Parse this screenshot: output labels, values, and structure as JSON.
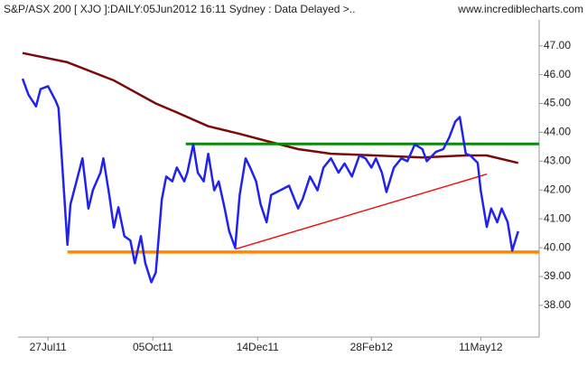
{
  "chart_data": {
    "type": "line",
    "title": "S&P/ASX 200 [ XJO ]:DAILY:05Jun2012 16:11 Sydney : Data Delayed >..",
    "source": "www.incrediblecharts.com",
    "xlim": [
      "2011-07-07",
      "2012-06-19"
    ],
    "xticks": [
      {
        "value": "2011-07-27",
        "label": "27Jul11"
      },
      {
        "value": "2011-10-05",
        "label": "05Oct11"
      },
      {
        "value": "2011-12-14",
        "label": "14Dec11"
      },
      {
        "value": "2012-02-28",
        "label": "28Feb12"
      },
      {
        "value": "2012-05-11",
        "label": "11May12"
      }
    ],
    "ylim": [
      36.9,
      47.9
    ],
    "yticks": [
      {
        "value": 38,
        "label": "38.00"
      },
      {
        "value": 39,
        "label": "39.00"
      },
      {
        "value": 40,
        "label": "40.00"
      },
      {
        "value": 41,
        "label": "41.00"
      },
      {
        "value": 42,
        "label": "42.00"
      },
      {
        "value": 43,
        "label": "43.00"
      },
      {
        "value": 44,
        "label": "44.00"
      },
      {
        "value": 45,
        "label": "45.00"
      },
      {
        "value": 46,
        "label": "46.00"
      },
      {
        "value": 47,
        "label": "47.00"
      }
    ],
    "series": [
      {
        "color": "#2222ee",
        "width": 2.5,
        "x": [
          "2011-07-10",
          "2011-07-14",
          "2011-07-19",
          "2011-07-22",
          "2011-07-27",
          "2011-08-01",
          "2011-08-03",
          "2011-08-05",
          "2011-08-09",
          "2011-08-11",
          "2011-08-15",
          "2011-08-19",
          "2011-08-23",
          "2011-08-26",
          "2011-08-31",
          "2011-09-02",
          "2011-09-06",
          "2011-09-09",
          "2011-09-12",
          "2011-09-16",
          "2011-09-20",
          "2011-09-23",
          "2011-09-27",
          "2011-09-30",
          "2011-10-04",
          "2011-10-07",
          "2011-10-11",
          "2011-10-14",
          "2011-10-18",
          "2011-10-21",
          "2011-10-26",
          "2011-10-28",
          "2011-11-01",
          "2011-11-04",
          "2011-11-08",
          "2011-11-11",
          "2011-11-15",
          "2011-11-18",
          "2011-11-22",
          "2011-11-25",
          "2011-11-29",
          "2011-12-02",
          "2011-12-06",
          "2011-12-09",
          "2011-12-13",
          "2011-12-16",
          "2011-12-20",
          "2011-12-23",
          "2011-12-29",
          "2012-01-04",
          "2012-01-10",
          "2012-01-13",
          "2012-01-18",
          "2012-01-23",
          "2012-01-27",
          "2012-02-01",
          "2012-02-06",
          "2012-02-10",
          "2012-02-15",
          "2012-02-20",
          "2012-02-24",
          "2012-02-28",
          "2012-03-02",
          "2012-03-06",
          "2012-03-09",
          "2012-03-14",
          "2012-03-19",
          "2012-03-23",
          "2012-03-28",
          "2012-04-02",
          "2012-04-05",
          "2012-04-11",
          "2012-04-16",
          "2012-04-20",
          "2012-04-24",
          "2012-04-27",
          "2012-05-01",
          "2012-05-04",
          "2012-05-09",
          "2012-05-11",
          "2012-05-15",
          "2012-05-18",
          "2012-05-22",
          "2012-05-25",
          "2012-05-29",
          "2012-06-01",
          "2012-06-05"
        ],
        "values": [
          45.86,
          45.3,
          44.9,
          45.5,
          45.6,
          45.1,
          44.85,
          43.26,
          40.1,
          41.5,
          42.3,
          43.1,
          41.36,
          42.0,
          42.6,
          43.1,
          41.8,
          40.7,
          41.4,
          40.4,
          40.25,
          39.46,
          40.4,
          39.46,
          38.8,
          39.14,
          41.68,
          42.47,
          42.3,
          42.78,
          42.3,
          42.6,
          43.58,
          42.6,
          42.3,
          43.26,
          41.99,
          42.3,
          41.36,
          40.57,
          40.0,
          41.83,
          43.1,
          42.78,
          42.3,
          41.5,
          40.88,
          41.83,
          41.99,
          42.15,
          41.36,
          41.68,
          42.47,
          41.99,
          42.78,
          43.1,
          42.6,
          42.92,
          42.47,
          43.2,
          43.1,
          42.78,
          43.1,
          42.6,
          41.93,
          42.78,
          43.1,
          43.0,
          43.58,
          43.42,
          43.0,
          43.32,
          43.42,
          43.83,
          44.37,
          44.53,
          43.26,
          43.2,
          42.94,
          41.99,
          40.72,
          41.36,
          40.88,
          41.36,
          40.88,
          39.9,
          40.57
        ]
      },
      {
        "color": "#7a0a0a",
        "width": 2.5,
        "x": [
          "2011-07-10",
          "2011-08-09",
          "2011-09-09",
          "2011-10-07",
          "2011-10-21",
          "2011-11-11",
          "2011-12-01",
          "2011-12-20",
          "2012-01-10",
          "2012-02-01",
          "2012-03-01",
          "2012-04-02",
          "2012-05-01",
          "2012-05-15",
          "2012-06-05"
        ],
        "values": [
          46.75,
          46.43,
          45.8,
          45.0,
          44.69,
          44.21,
          43.96,
          43.7,
          43.42,
          43.26,
          43.2,
          43.13,
          43.2,
          43.2,
          42.94
        ]
      },
      {
        "color": "#0a8a0a",
        "width": 3,
        "x": [
          "2011-10-27",
          "2012-06-19"
        ],
        "values": [
          43.6,
          43.6
        ]
      },
      {
        "color": "#ff8800",
        "width": 3.5,
        "x": [
          "2011-08-09",
          "2012-06-19"
        ],
        "values": [
          39.85,
          39.85
        ]
      },
      {
        "color": "#ee1111",
        "width": 1.5,
        "x": [
          "2011-11-29",
          "2012-05-15"
        ],
        "values": [
          39.95,
          42.55
        ]
      }
    ]
  }
}
